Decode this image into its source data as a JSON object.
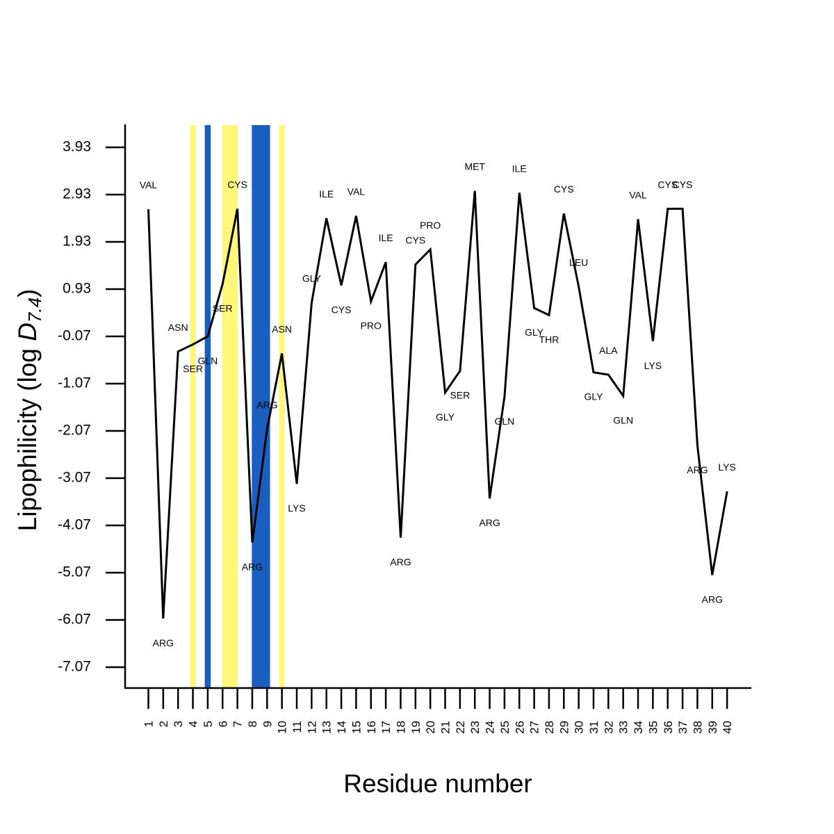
{
  "chart_data": {
    "type": "line",
    "xlabel": "Residue number",
    "ylabel": {
      "prefix": "Lipophilicity (log ",
      "var": "D",
      "sub": "7.4",
      "suffix": ")"
    },
    "yticks": [
      3.93,
      2.93,
      1.93,
      0.93,
      -0.07,
      -1.07,
      -2.07,
      -3.07,
      -4.07,
      -5.07,
      -6.07,
      -7.07
    ],
    "ytick_labels": [
      "3.93",
      "2.93",
      "1.93",
      "0.93",
      "-0.07",
      "-1.07",
      "-2.07",
      "-3.07",
      "-4.07",
      "-5.07",
      "-6.07",
      "-7.07"
    ],
    "ylim": [
      -7.5,
      4.4
    ],
    "xlim": [
      0.5,
      41.5
    ],
    "x": [
      1,
      2,
      3,
      4,
      5,
      6,
      7,
      8,
      9,
      10,
      11,
      12,
      13,
      14,
      15,
      16,
      17,
      18,
      19,
      20,
      21,
      22,
      23,
      24,
      25,
      26,
      27,
      28,
      29,
      30,
      31,
      32,
      33,
      34,
      35,
      36,
      37,
      38,
      39,
      40
    ],
    "xtick_labels": [
      "1",
      "2",
      "3",
      "4",
      "5",
      "6",
      "7",
      "8",
      "9",
      "10",
      "11",
      "12",
      "13",
      "14",
      "15",
      "16",
      "17",
      "18",
      "19",
      "20",
      "21",
      "22",
      "23",
      "24",
      "25",
      "26",
      "27",
      "28",
      "29",
      "30",
      "31",
      "32",
      "33",
      "34",
      "35",
      "36",
      "37",
      "38",
      "39",
      "40"
    ],
    "series": [
      {
        "values": [
          2.62,
          -6.04,
          -0.39,
          -0.24,
          -0.07,
          1.04,
          2.63,
          -4.43,
          -2.03,
          -0.43,
          -3.19,
          0.64,
          2.43,
          1.01,
          2.48,
          0.67,
          1.5,
          -4.33,
          1.45,
          1.77,
          -1.26,
          -0.8,
          3.01,
          -3.5,
          -1.35,
          2.97,
          0.53,
          0.38,
          2.53,
          0.98,
          -0.83,
          -0.88,
          -1.33,
          2.41,
          -0.17,
          2.63,
          2.63,
          -2.38,
          -5.12,
          -3.35
        ],
        "color": "#000000"
      }
    ],
    "point_labels": [
      "VAL",
      "ARG",
      "ASN",
      "SER",
      "GLN",
      "SER",
      "CYS",
      "ARG",
      "ARG",
      "ASN",
      "LYS",
      "GLY",
      "ILE",
      "CYS",
      "VAL",
      "PRO",
      "ILE",
      "ARG",
      "CYS",
      "PRO",
      "GLY",
      "SER",
      "MET",
      "ARG",
      "GLN",
      "ILE",
      "GLY",
      "THR",
      "CYS",
      "LEU",
      "GLY",
      "ALA",
      "GLN",
      "VAL",
      "LYS",
      "CYS",
      "CYS",
      "ARG",
      "ARG",
      "LYS"
    ],
    "highlight_bands": [
      {
        "from": 3.8,
        "to": 4.2,
        "color": "#fff77a"
      },
      {
        "from": 4.8,
        "to": 5.2,
        "color": "#1a5fbf"
      },
      {
        "from": 5.97,
        "to": 7.03,
        "color": "#fff77a"
      },
      {
        "from": 7.97,
        "to": 9.2,
        "color": "#1a5fbf"
      },
      {
        "from": 9.8,
        "to": 10.2,
        "color": "#fff77a"
      }
    ]
  }
}
